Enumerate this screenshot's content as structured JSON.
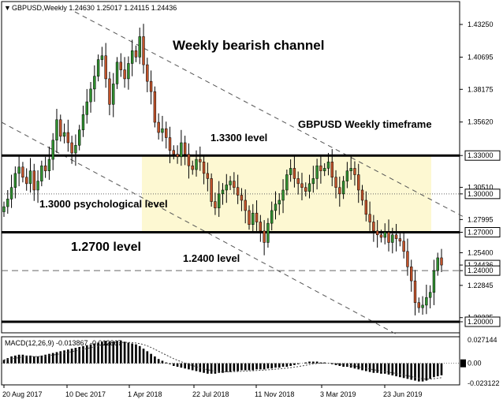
{
  "header": {
    "symbol_info": "GBPUSD,Weekly  1.24630 1.25017 1.24115 1.24436"
  },
  "annotations": {
    "channel_title": "Weekly bearish channel",
    "timeframe": "GBPUSD Weekly timeframe",
    "level_1_33": "1.3300 level",
    "level_1_30": "1.3000 psychological level",
    "level_1_27": "1.2700 level",
    "level_1_24": "1.2400 level"
  },
  "colors": {
    "bull_candle": "#2f8f2f",
    "bear_candle": "#c0522a",
    "zone_fill": "#fdf8d2",
    "line": "#000000",
    "current_price_box": "#000000"
  },
  "chart_data": {
    "type": "candlestick",
    "timeframe": "Weekly",
    "price_axis": {
      "ticks": [
        "1.43250",
        "1.40695",
        "1.38175",
        "1.35620",
        "1.33000",
        "1.30510",
        "1.30000",
        "1.27995",
        "1.27000",
        "1.25400",
        "1.24436",
        "1.24000",
        "1.22845",
        "1.20325",
        "1.20000"
      ],
      "highlighted": [
        "1.33000",
        "1.30000",
        "1.27000",
        "1.24436",
        "1.24000",
        "1.20000"
      ]
    },
    "time_axis": {
      "ticks": [
        "20 Aug 2017",
        "10 Dec 2017",
        "1 Apr 2018",
        "22 Jul 2018",
        "11 Nov 2018",
        "3 Mar 2019",
        "23 Jun 2019"
      ]
    },
    "last_bar": {
      "open": 1.2463,
      "high": 1.25017,
      "low": 1.24115,
      "close": 1.24436
    },
    "horizontal_levels": [
      {
        "price": 1.33,
        "style": "solid-thick"
      },
      {
        "price": 1.3,
        "style": "dotted"
      },
      {
        "price": 1.27,
        "style": "solid-thick"
      },
      {
        "price": 1.24,
        "style": "dashed"
      },
      {
        "price": 1.2,
        "style": "solid-thick"
      }
    ],
    "zone": {
      "from_date": "1 Apr 2018",
      "top": 1.33,
      "bottom": 1.27
    },
    "candles_close": [
      1.29,
      1.296,
      1.305,
      1.316,
      1.321,
      1.313,
      1.308,
      1.318,
      1.303,
      1.31,
      1.322,
      1.318,
      1.327,
      1.342,
      1.358,
      1.345,
      1.348,
      1.34,
      1.332,
      1.338,
      1.35,
      1.362,
      1.372,
      1.382,
      1.392,
      1.405,
      1.408,
      1.39,
      1.37,
      1.386,
      1.403,
      1.397,
      1.39,
      1.402,
      1.412,
      1.407,
      1.423,
      1.401,
      1.388,
      1.38,
      1.356,
      1.348,
      1.351,
      1.344,
      1.334,
      1.331,
      1.329,
      1.34,
      1.331,
      1.322,
      1.319,
      1.327,
      1.325,
      1.316,
      1.312,
      1.294,
      1.289,
      1.3,
      1.303,
      1.307,
      1.31,
      1.305,
      1.299,
      1.295,
      1.287,
      1.276,
      1.285,
      1.278,
      1.271,
      1.262,
      1.277,
      1.287,
      1.292,
      1.295,
      1.303,
      1.315,
      1.32,
      1.312,
      1.308,
      1.305,
      1.302,
      1.308,
      1.312,
      1.322,
      1.318,
      1.32,
      1.325,
      1.313,
      1.305,
      1.3,
      1.31,
      1.318,
      1.32,
      1.315,
      1.303,
      1.295,
      1.284,
      1.278,
      1.271,
      1.268,
      1.266,
      1.27,
      1.262,
      1.268,
      1.265,
      1.263,
      1.255,
      1.243,
      1.232,
      1.215,
      1.211,
      1.213,
      1.219,
      1.223,
      1.24,
      1.25,
      1.24436
    ],
    "macd": {
      "label": "MACD(12,26,9) -0.013867 -0.012867",
      "ticks": [
        "0.027144",
        "0.00",
        "-0.023122"
      ],
      "values": [
        0.004,
        0.006,
        0.008,
        0.009,
        0.01,
        0.01,
        0.009,
        0.009,
        0.008,
        0.008,
        0.009,
        0.01,
        0.011,
        0.012,
        0.013,
        0.014,
        0.015,
        0.016,
        0.017,
        0.018,
        0.019,
        0.02,
        0.021,
        0.022,
        0.023,
        0.024,
        0.025,
        0.026,
        0.025,
        0.025,
        0.026,
        0.026,
        0.025,
        0.024,
        0.023,
        0.022,
        0.02,
        0.017,
        0.014,
        0.011,
        0.008,
        0.005,
        0.003,
        0.001,
        -0.001,
        -0.003,
        -0.004,
        -0.005,
        -0.006,
        -0.007,
        -0.008,
        -0.009,
        -0.01,
        -0.011,
        -0.012,
        -0.012,
        -0.012,
        -0.011,
        -0.011,
        -0.01,
        -0.01,
        -0.009,
        -0.009,
        -0.008,
        -0.008,
        -0.008,
        -0.008,
        -0.007,
        -0.007,
        -0.007,
        -0.006,
        -0.006,
        -0.005,
        -0.005,
        -0.004,
        -0.004,
        -0.003,
        -0.002,
        -0.001,
        0.0,
        0.001,
        0.002,
        0.002,
        0.002,
        0.001,
        0.001,
        0.0,
        -0.001,
        -0.002,
        -0.003,
        -0.004,
        -0.004,
        -0.005,
        -0.006,
        -0.007,
        -0.008,
        -0.009,
        -0.01,
        -0.011,
        -0.011,
        -0.012,
        -0.012,
        -0.013,
        -0.014,
        -0.015,
        -0.016,
        -0.017,
        -0.018,
        -0.019,
        -0.02,
        -0.021,
        -0.021,
        -0.02,
        -0.018,
        -0.016,
        -0.015,
        -0.013867
      ]
    }
  }
}
